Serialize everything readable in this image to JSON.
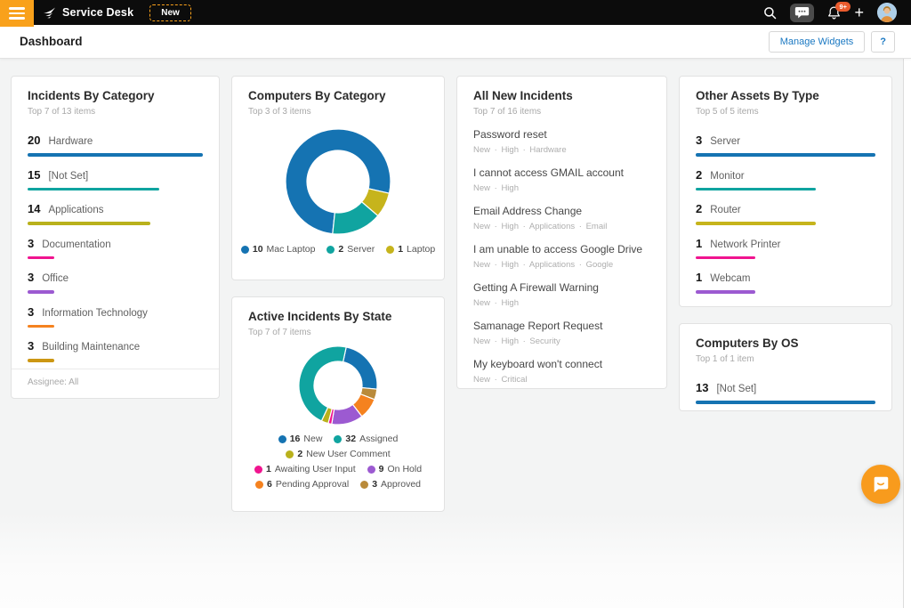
{
  "topbar": {
    "brand": "Service Desk",
    "new_button_label": "New",
    "notification_badge": "9+"
  },
  "header": {
    "title": "Dashboard",
    "manage_widgets_label": "Manage Widgets",
    "help_label": "?"
  },
  "colors": {
    "accent_orange": "#f9a11b",
    "link_blue": "#1a78c2",
    "badge_orange_red": "#ea5b2d",
    "launcher_orange": "#f89b1d"
  },
  "widgets": {
    "incidents_by_category": {
      "title": "Incidents By Category",
      "subtitle": "Top 7 of 13 items",
      "footer": "Assignee: All",
      "items": [
        {
          "value": 20,
          "label": "Hardware",
          "color": "#1573b2"
        },
        {
          "value": 15,
          "label": "[Not Set]",
          "color": "#10a4a0"
        },
        {
          "value": 14,
          "label": "Applications",
          "color": "#b9b11c"
        },
        {
          "value": 3,
          "label": "Documentation",
          "color": "#f0148f"
        },
        {
          "value": 3,
          "label": "Office",
          "color": "#9c5ad1"
        },
        {
          "value": 3,
          "label": "Information Technology",
          "color": "#f5821f"
        },
        {
          "value": 3,
          "label": "Building Maintenance",
          "color": "#cc9713"
        }
      ]
    },
    "computers_by_category": {
      "title": "Computers By Category",
      "subtitle": "Top 3 of 3 items",
      "donut": {
        "type": "donut",
        "start_angle_deg": 186,
        "segments": [
          {
            "label": "Mac Laptop",
            "value": 10,
            "color": "#1573b2"
          },
          {
            "label": "Laptop",
            "value": 1,
            "color": "#c6b41c"
          },
          {
            "label": "Server",
            "value": 2,
            "color": "#10a4a0"
          }
        ]
      },
      "legend_rows": [
        [
          {
            "value": 10,
            "label": "Mac Laptop",
            "color": "#1573b2"
          },
          {
            "value": 2,
            "label": "Server",
            "color": "#10a4a0"
          },
          {
            "value": 1,
            "label": "Laptop",
            "color": "#c6b41c"
          }
        ]
      ]
    },
    "active_incidents_by_state": {
      "title": "Active Incidents By State",
      "subtitle": "Top 7 of 7 items",
      "donut": {
        "type": "donut",
        "start_angle_deg": 12,
        "segments": [
          {
            "label": "New",
            "value": 16,
            "color": "#1573b2"
          },
          {
            "label": "Approved",
            "value": 3,
            "color": "#b98a3a"
          },
          {
            "label": "Pending Approval",
            "value": 6,
            "color": "#f5821f"
          },
          {
            "label": "On Hold",
            "value": 9,
            "color": "#9c5ad1"
          },
          {
            "label": "Awaiting User Input",
            "value": 1,
            "color": "#f0148f"
          },
          {
            "label": "New User Comment",
            "value": 2,
            "color": "#b9b11c"
          },
          {
            "label": "Assigned",
            "value": 32,
            "color": "#10a4a0"
          }
        ]
      },
      "legend_rows": [
        [
          {
            "value": 16,
            "label": "New",
            "color": "#1573b2"
          },
          {
            "value": 32,
            "label": "Assigned",
            "color": "#10a4a0"
          }
        ],
        [
          {
            "value": 2,
            "label": "New User Comment",
            "color": "#b9b11c"
          }
        ],
        [
          {
            "value": 1,
            "label": "Awaiting User Input",
            "color": "#f0148f"
          },
          {
            "value": 9,
            "label": "On Hold",
            "color": "#9c5ad1"
          }
        ],
        [
          {
            "value": 6,
            "label": "Pending Approval",
            "color": "#f5821f"
          },
          {
            "value": 3,
            "label": "Approved",
            "color": "#b98a3a"
          }
        ]
      ]
    },
    "all_new_incidents": {
      "title": "All New Incidents",
      "subtitle": "Top 7 of 16 items",
      "items": [
        {
          "title": "Password reset",
          "tags": [
            "New",
            "High",
            "Hardware"
          ]
        },
        {
          "title": "I cannot access GMAIL account",
          "tags": [
            "New",
            "High"
          ]
        },
        {
          "title": "Email Address Change",
          "tags": [
            "New",
            "High",
            "Applications",
            "Email"
          ]
        },
        {
          "title": "I am unable to access Google Drive",
          "tags": [
            "New",
            "High",
            "Applications",
            "Google"
          ]
        },
        {
          "title": "Getting A Firewall Warning",
          "tags": [
            "New",
            "High"
          ]
        },
        {
          "title": "Samanage Report Request",
          "tags": [
            "New",
            "High",
            "Security"
          ]
        },
        {
          "title": "My keyboard won't connect",
          "tags": [
            "New",
            "Critical"
          ]
        }
      ]
    },
    "other_assets_by_type": {
      "title": "Other Assets By Type",
      "subtitle": "Top 5 of 5 items",
      "items": [
        {
          "value": 3,
          "label": "Server",
          "color": "#1573b2"
        },
        {
          "value": 2,
          "label": "Monitor",
          "color": "#10a4a0"
        },
        {
          "value": 2,
          "label": "Router",
          "color": "#c6b41c"
        },
        {
          "value": 1,
          "label": "Network Printer",
          "color": "#f0148f"
        },
        {
          "value": 1,
          "label": "Webcam",
          "color": "#9c5ad1"
        }
      ]
    },
    "computers_by_os": {
      "title": "Computers By OS",
      "subtitle": "Top 1 of 1 item",
      "items": [
        {
          "value": 13,
          "label": "[Not Set]",
          "color": "#1573b2"
        }
      ]
    }
  }
}
